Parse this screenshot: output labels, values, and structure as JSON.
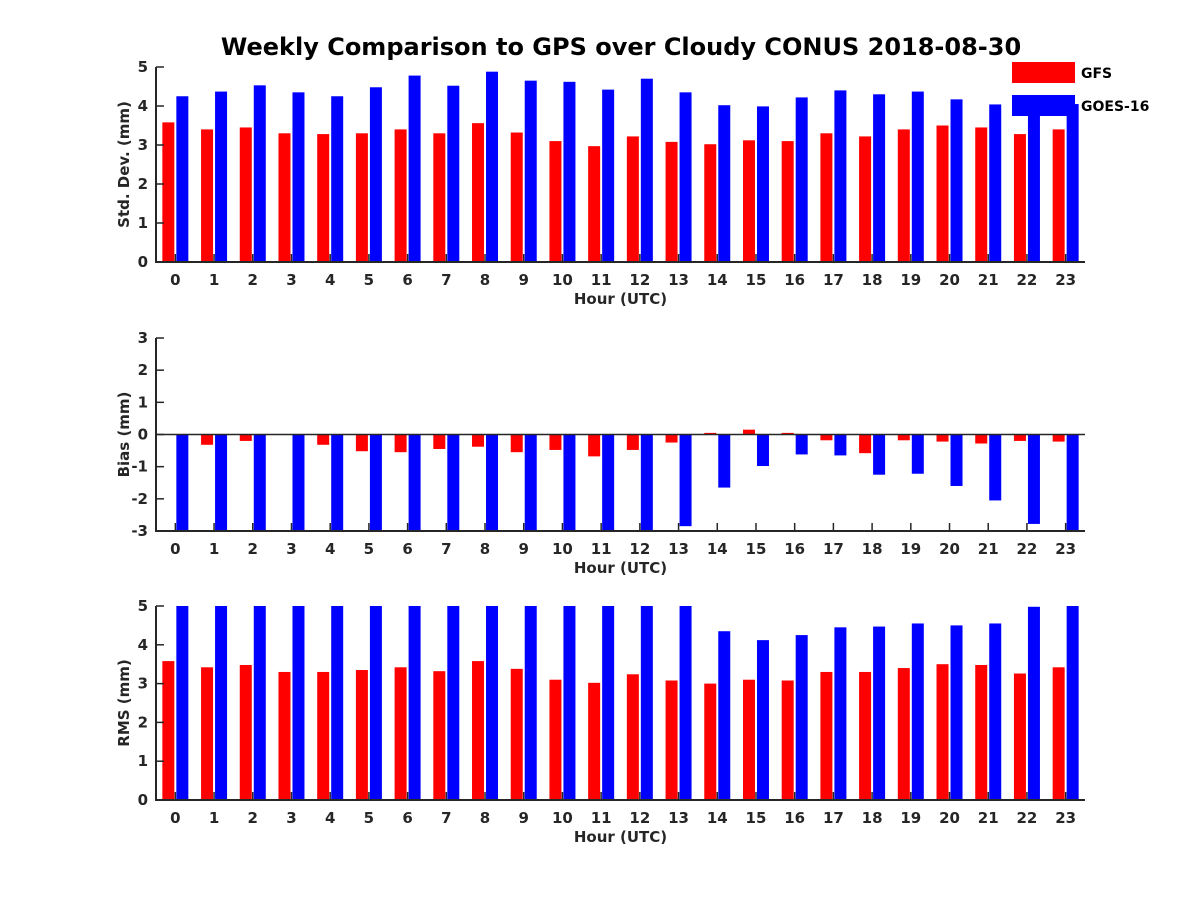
{
  "title": "Weekly Comparison to GPS over Cloudy CONUS 2018-08-30",
  "colors": {
    "GFS": "#ff0000",
    "GOES-16": "#0000ff",
    "axis": "#262626"
  },
  "legend": {
    "placement": "top-right",
    "items": [
      "GFS",
      "GOES-16"
    ]
  },
  "chart_data": [
    {
      "type": "bar",
      "title": "",
      "xlabel": "Hour (UTC)",
      "ylabel": "Std. Dev. (mm)",
      "ylim": [
        0,
        5
      ],
      "yticks": [
        0,
        1,
        2,
        3,
        4,
        5
      ],
      "categories": [
        "0",
        "1",
        "2",
        "3",
        "4",
        "5",
        "6",
        "7",
        "8",
        "9",
        "10",
        "11",
        "12",
        "13",
        "14",
        "15",
        "16",
        "17",
        "18",
        "19",
        "20",
        "21",
        "22",
        "23"
      ],
      "series": [
        {
          "name": "GFS",
          "values": [
            3.58,
            3.4,
            3.45,
            3.3,
            3.28,
            3.3,
            3.4,
            3.3,
            3.56,
            3.32,
            3.1,
            2.97,
            3.22,
            3.08,
            3.02,
            3.12,
            3.1,
            3.3,
            3.22,
            3.4,
            3.5,
            3.45,
            3.28,
            3.4
          ]
        },
        {
          "name": "GOES-16",
          "values": [
            4.25,
            4.37,
            4.53,
            4.35,
            4.25,
            4.48,
            4.78,
            4.52,
            4.88,
            4.65,
            4.62,
            4.42,
            4.7,
            4.35,
            4.02,
            3.99,
            4.22,
            4.4,
            4.3,
            4.37,
            4.17,
            4.04,
            4.13,
            4.05
          ]
        }
      ],
      "grid": false
    },
    {
      "type": "bar",
      "title": "",
      "xlabel": "Hour (UTC)",
      "ylabel": "Bias (mm)",
      "ylim": [
        -3,
        3
      ],
      "yticks": [
        -3,
        -2,
        -1,
        0,
        1,
        2,
        3
      ],
      "categories": [
        "0",
        "1",
        "2",
        "3",
        "4",
        "5",
        "6",
        "7",
        "8",
        "9",
        "10",
        "11",
        "12",
        "13",
        "14",
        "15",
        "16",
        "17",
        "18",
        "19",
        "20",
        "21",
        "22",
        "23"
      ],
      "series": [
        {
          "name": "GFS",
          "values": [
            0.0,
            -0.32,
            -0.2,
            0.0,
            -0.32,
            -0.52,
            -0.55,
            -0.45,
            -0.38,
            -0.55,
            -0.48,
            -0.68,
            -0.48,
            -0.25,
            0.05,
            0.15,
            0.05,
            -0.18,
            -0.58,
            -0.18,
            -0.22,
            -0.28,
            -0.2,
            -0.22
          ]
        },
        {
          "name": "GOES-16",
          "values": [
            -3.0,
            -3.0,
            -3.0,
            -3.0,
            -3.0,
            -3.0,
            -3.0,
            -3.0,
            -3.0,
            -3.0,
            -3.0,
            -3.0,
            -3.0,
            -2.85,
            -1.65,
            -0.98,
            -0.62,
            -0.65,
            -1.25,
            -1.22,
            -1.6,
            -2.05,
            -2.78,
            -3.0
          ]
        }
      ],
      "grid": false
    },
    {
      "type": "bar",
      "title": "",
      "xlabel": "Hour (UTC)",
      "ylabel": "RMS (mm)",
      "ylim": [
        0,
        5
      ],
      "yticks": [
        0,
        1,
        2,
        3,
        4,
        5
      ],
      "categories": [
        "0",
        "1",
        "2",
        "3",
        "4",
        "5",
        "6",
        "7",
        "8",
        "9",
        "10",
        "11",
        "12",
        "13",
        "14",
        "15",
        "16",
        "17",
        "18",
        "19",
        "20",
        "21",
        "22",
        "23"
      ],
      "series": [
        {
          "name": "GFS",
          "values": [
            3.58,
            3.42,
            3.48,
            3.3,
            3.3,
            3.35,
            3.42,
            3.32,
            3.58,
            3.38,
            3.1,
            3.02,
            3.24,
            3.08,
            3.0,
            3.1,
            3.08,
            3.3,
            3.3,
            3.4,
            3.5,
            3.48,
            3.26,
            3.42
          ]
        },
        {
          "name": "GOES-16",
          "values": [
            5.0,
            5.0,
            5.0,
            5.0,
            5.0,
            5.0,
            5.0,
            5.0,
            5.0,
            5.0,
            5.0,
            5.0,
            5.0,
            5.0,
            4.35,
            4.12,
            4.25,
            4.45,
            4.47,
            4.55,
            4.5,
            4.55,
            4.98,
            5.0
          ]
        }
      ],
      "grid": false
    }
  ]
}
